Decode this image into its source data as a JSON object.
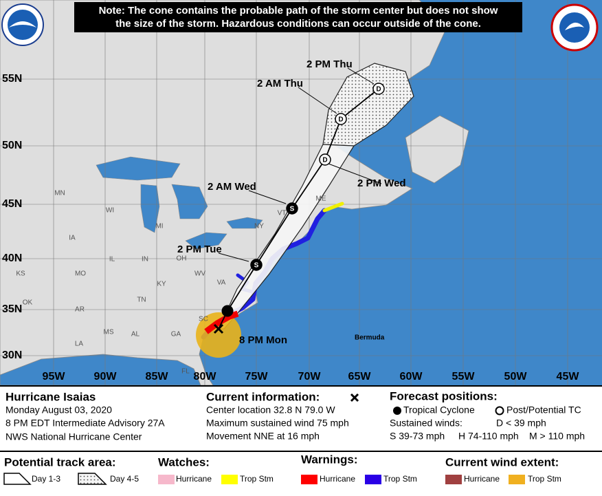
{
  "notice": [
    "Note: The cone contains the probable path of the storm center but does not show",
    "the size of the storm. Hazardous conditions can occur outside of the cone."
  ],
  "map": {
    "latitude_labels": [
      "55N",
      "50N",
      "45N",
      "40N",
      "35N",
      "30N"
    ],
    "longitude_labels": [
      "95W",
      "90W",
      "85W",
      "80W",
      "75W",
      "70W",
      "65W",
      "60W",
      "55W",
      "50W",
      "45W"
    ],
    "state_labels": [
      "MN",
      "WI",
      "MI",
      "IA",
      "IL",
      "IN",
      "OH",
      "MO",
      "KS",
      "KY",
      "WV",
      "VA",
      "TN",
      "OK",
      "AR",
      "SC",
      "GA",
      "AL",
      "MS",
      "LA",
      "FL",
      "NY",
      "VT",
      "ME"
    ],
    "current_position": "8 PM Mon",
    "forecast_points": [
      {
        "label": "2 PM Tue",
        "symbol": "S"
      },
      {
        "label": "2 AM Wed",
        "symbol": "S"
      },
      {
        "label": "2 PM Wed",
        "symbol": "D"
      },
      {
        "label": "2 AM Thu",
        "symbol": "D"
      },
      {
        "label": "2 PM Thu",
        "symbol": "D"
      }
    ],
    "place_labels": [
      "Bermuda"
    ]
  },
  "storm": {
    "name": "Hurricane Isaias",
    "date": "Monday August 03, 2020",
    "advisory": "8 PM EDT Intermediate Advisory 27A",
    "center": "NWS National Hurricane Center"
  },
  "current_information": {
    "title": "Current information:",
    "center_location": "Center location 32.8 N 79.0 W",
    "max_wind": "Maximum sustained wind 75 mph",
    "movement": "Movement NNE at 16 mph"
  },
  "forecast_positions": {
    "title": "Forecast positions:",
    "tropical_cyclone": "Tropical Cyclone",
    "post_potential_tc": "Post/Potential TC",
    "sustained_winds": "Sustained winds:",
    "d": "D < 39 mph",
    "s": "S 39-73 mph",
    "h": "H 74-110 mph",
    "m": "M > 110 mph"
  },
  "legend": {
    "potential_track_area": {
      "title": "Potential track area:",
      "day_1_3": "Day 1-3",
      "day_4_5": "Day 4-5"
    },
    "watches": {
      "title": "Watches:",
      "hurricane": "Hurricane",
      "trop_stm": "Trop Stm"
    },
    "warnings": {
      "title": "Warnings:",
      "hurricane": "Hurricane",
      "trop_stm": "Trop Stm"
    },
    "current_wind_extent": {
      "title": "Current wind extent:",
      "hurricane": "Hurricane",
      "trop_stm": "Trop Stm"
    }
  }
}
